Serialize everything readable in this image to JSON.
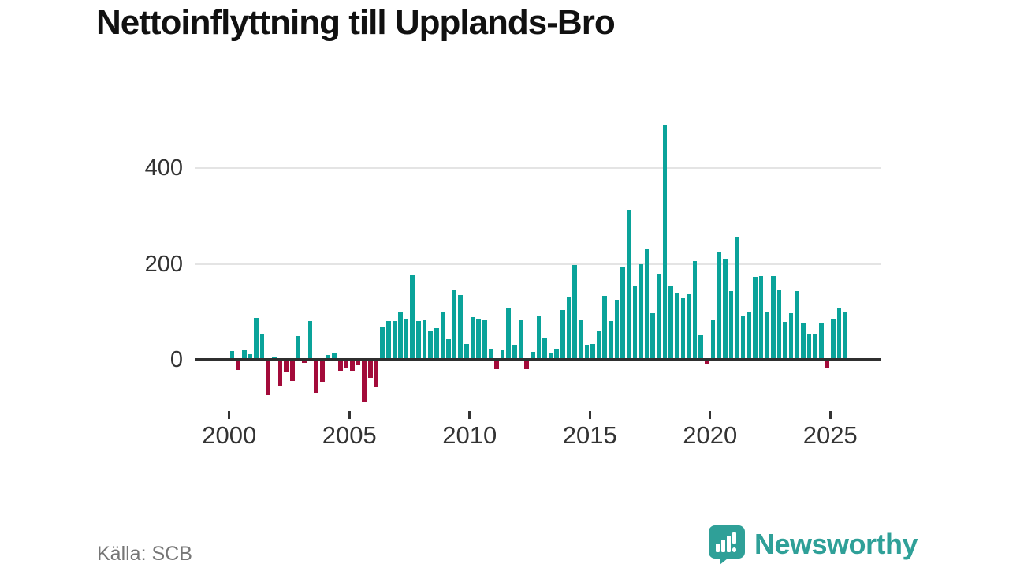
{
  "title": "Nettoinflyttning till Upplands-Bro",
  "source": "Källa: SCB",
  "brand": {
    "name": "Newsworthy"
  },
  "colors": {
    "positive": "#0aa39a",
    "negative": "#a30b3a",
    "axis": "#2f2f2f",
    "grid": "#e4e4e4",
    "tick_text": "#333333",
    "title_text": "#111111",
    "muted_text": "#767676",
    "brand_teal": "#2fa098"
  },
  "chart_data": {
    "type": "bar",
    "title": "Nettoinflyttning till Upplands-Bro",
    "xlabel": "",
    "ylabel": "",
    "periodicity": "quarterly",
    "x_ticks": [
      2000,
      2005,
      2010,
      2015,
      2020,
      2025
    ],
    "y_ticks": [
      0,
      200,
      400
    ],
    "ylim": [
      -100,
      500
    ],
    "grid": "horizontal",
    "legend": "none",
    "quarters": [
      "2000Q1",
      "2000Q2",
      "2000Q3",
      "2000Q4",
      "2001Q1",
      "2001Q2",
      "2001Q3",
      "2001Q4",
      "2002Q1",
      "2002Q2",
      "2002Q3",
      "2002Q4",
      "2003Q1",
      "2003Q2",
      "2003Q3",
      "2003Q4",
      "2004Q1",
      "2004Q2",
      "2004Q3",
      "2004Q4",
      "2005Q1",
      "2005Q2",
      "2005Q3",
      "2005Q4",
      "2006Q1",
      "2006Q2",
      "2006Q3",
      "2006Q4",
      "2007Q1",
      "2007Q2",
      "2007Q3",
      "2007Q4",
      "2008Q1",
      "2008Q2",
      "2008Q3",
      "2008Q4",
      "2009Q1",
      "2009Q2",
      "2009Q3",
      "2009Q4",
      "2010Q1",
      "2010Q2",
      "2010Q3",
      "2010Q4",
      "2011Q1",
      "2011Q2",
      "2011Q3",
      "2011Q4",
      "2012Q1",
      "2012Q2",
      "2012Q3",
      "2012Q4",
      "2013Q1",
      "2013Q2",
      "2013Q3",
      "2013Q4",
      "2014Q1",
      "2014Q2",
      "2014Q3",
      "2014Q4",
      "2015Q1",
      "2015Q2",
      "2015Q3",
      "2015Q4",
      "2016Q1",
      "2016Q2",
      "2016Q3",
      "2016Q4",
      "2017Q1",
      "2017Q2",
      "2017Q3",
      "2017Q4",
      "2018Q1",
      "2018Q2",
      "2018Q3",
      "2018Q4",
      "2019Q1",
      "2019Q2",
      "2019Q3",
      "2019Q4",
      "2020Q1",
      "2020Q2",
      "2020Q3",
      "2020Q4",
      "2021Q1",
      "2021Q2",
      "2021Q3",
      "2021Q4",
      "2022Q1",
      "2022Q2",
      "2022Q3",
      "2022Q4",
      "2023Q1",
      "2023Q2",
      "2023Q3",
      "2023Q4",
      "2024Q1",
      "2024Q2",
      "2024Q3",
      "2024Q4",
      "2025Q1",
      "2025Q2",
      "2025Q3"
    ],
    "values": [
      18,
      -20,
      20,
      11,
      88,
      53,
      -72,
      7,
      -52,
      -25,
      -42,
      50,
      -5,
      80,
      -67,
      -44,
      10,
      14,
      -22,
      -14,
      -22,
      -10,
      -88,
      -37,
      -56,
      67,
      80,
      80,
      98,
      85,
      177,
      80,
      82,
      60,
      66,
      100,
      43,
      145,
      135,
      33,
      89,
      86,
      82,
      23,
      -18,
      19,
      109,
      32,
      83,
      -18,
      17,
      92,
      44,
      13,
      22,
      103,
      131,
      198,
      82,
      32,
      33,
      60,
      133,
      81,
      125,
      192,
      313,
      155,
      199,
      232,
      97,
      179,
      490,
      153,
      140,
      128,
      136,
      206,
      51,
      -7,
      84,
      225,
      210,
      144,
      257,
      92,
      100,
      173,
      175,
      99,
      174,
      145,
      79,
      97,
      144,
      76,
      54,
      54,
      78,
      -15,
      86,
      107,
      98
    ]
  }
}
